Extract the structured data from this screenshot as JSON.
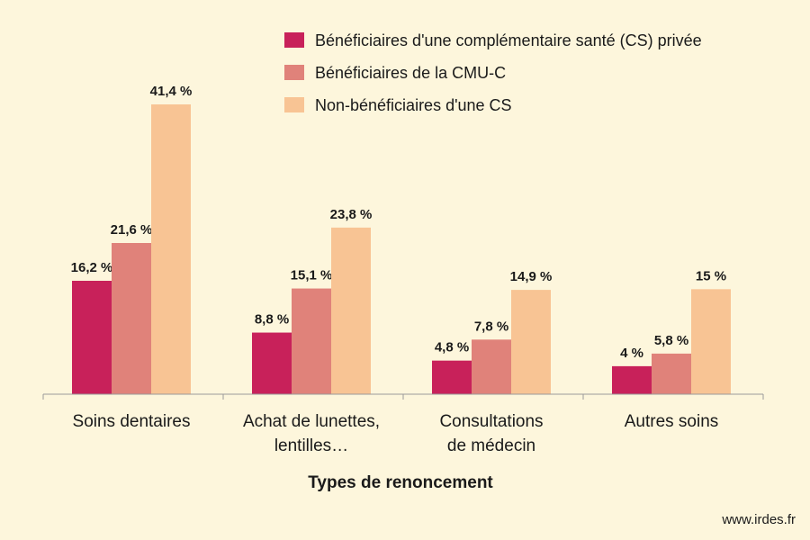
{
  "chart_data": {
    "type": "bar",
    "categories": [
      [
        "Soins dentaires"
      ],
      [
        "Achat de lunettes,",
        "lentilles…"
      ],
      [
        "Consultations",
        "de médecin"
      ],
      [
        "Autres soins"
      ]
    ],
    "series": [
      {
        "name": "Bénéficiaires d'une complémentaire santé (CS) privée",
        "color": "#c8215a",
        "values": [
          16.2,
          8.8,
          4.8,
          4.0
        ],
        "labels": [
          "16,2 %",
          "8,8 %",
          "4,8 %",
          "4 %"
        ]
      },
      {
        "name": "Bénéficiaires de la CMU-C",
        "color": "#e0827a",
        "values": [
          21.6,
          15.1,
          7.8,
          5.8
        ],
        "labels": [
          "21,6 %",
          "15,1 %",
          "7,8 %",
          "5,8 %"
        ]
      },
      {
        "name": "Non-bénéficiaires d'une CS",
        "color": "#f8c494",
        "values": [
          41.4,
          23.8,
          14.9,
          15.0
        ],
        "labels": [
          "41,4 %",
          "23,8 %",
          "14,9 %",
          "15 %"
        ]
      }
    ],
    "xlabel": "Types de renoncement",
    "ylim": [
      0,
      45
    ],
    "grid": false,
    "legend": "top-right"
  },
  "credit": "www.irdes.fr"
}
